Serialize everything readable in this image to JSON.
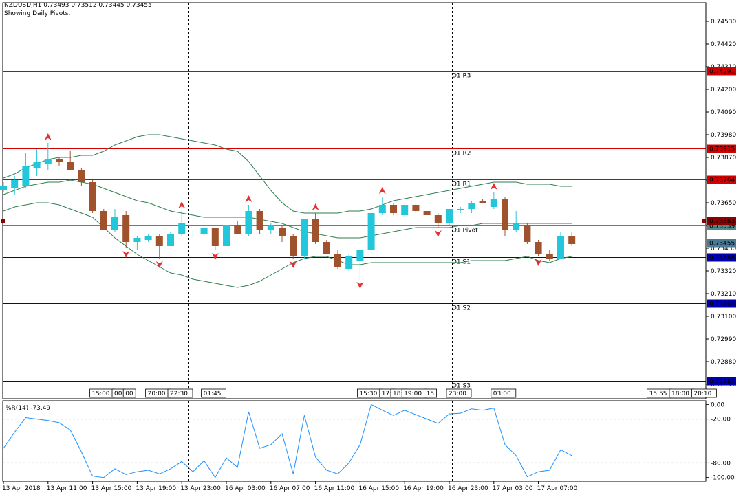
{
  "header": {
    "symbol_line": "NZDUSD,H1  0.73493 0.73512 0.73445 0.73455",
    "note": "Showing Daily Pivots."
  },
  "colors": {
    "bull": "#22C7DB",
    "bear": "#A0522D",
    "band": "#2E7D4F",
    "resistance": "#D40000",
    "support": "#0000B0",
    "pivot": "#4D8A8A",
    "price_line": "#7FA6B0",
    "wpr_line": "#1E90FF",
    "arrow": "#E53030"
  },
  "chart_data": [
    {
      "type": "candlestick",
      "title": "NZDUSD,H1",
      "ylim": [
        0.727,
        0.7462
      ],
      "y_ticks": [
        "0.74530",
        "0.74420",
        "0.74310",
        "0.74200",
        "0.74090",
        "0.73980",
        "0.73870",
        "0.73760",
        "0.73650",
        "0.73540",
        "0.73430",
        "0.73320",
        "0.73210",
        "0.73100",
        "0.72990",
        "0.72880",
        "0.72770"
      ],
      "candles": [
        {
          "o": 0.7371,
          "h": 0.7375,
          "l": 0.737,
          "c": 0.7373
        },
        {
          "o": 0.7372,
          "h": 0.7378,
          "l": 0.7369,
          "c": 0.7376
        },
        {
          "o": 0.7373,
          "h": 0.7389,
          "l": 0.7372,
          "c": 0.7383
        },
        {
          "o": 0.7382,
          "h": 0.7391,
          "l": 0.7378,
          "c": 0.7385
        },
        {
          "o": 0.7384,
          "h": 0.7394,
          "l": 0.7381,
          "c": 0.7386
        },
        {
          "o": 0.7386,
          "h": 0.7387,
          "l": 0.7383,
          "c": 0.7385
        },
        {
          "o": 0.7385,
          "h": 0.739,
          "l": 0.7381,
          "c": 0.7381
        },
        {
          "o": 0.7381,
          "h": 0.7382,
          "l": 0.7373,
          "c": 0.7375
        },
        {
          "o": 0.7375,
          "h": 0.7376,
          "l": 0.736,
          "c": 0.7361
        },
        {
          "o": 0.7361,
          "h": 0.7362,
          "l": 0.7352,
          "c": 0.7352
        },
        {
          "o": 0.7352,
          "h": 0.7362,
          "l": 0.7351,
          "c": 0.7358
        },
        {
          "o": 0.7359,
          "h": 0.7361,
          "l": 0.7343,
          "c": 0.7346
        },
        {
          "o": 0.7346,
          "h": 0.7349,
          "l": 0.7342,
          "c": 0.7348
        },
        {
          "o": 0.7347,
          "h": 0.735,
          "l": 0.7346,
          "c": 0.7349
        },
        {
          "o": 0.7349,
          "h": 0.735,
          "l": 0.7338,
          "c": 0.7344
        },
        {
          "o": 0.7344,
          "h": 0.7351,
          "l": 0.7344,
          "c": 0.735
        },
        {
          "o": 0.735,
          "h": 0.7361,
          "l": 0.7349,
          "c": 0.7355
        },
        {
          "o": 0.735,
          "h": 0.7352,
          "l": 0.7348,
          "c": 0.735
        },
        {
          "o": 0.735,
          "h": 0.7353,
          "l": 0.7349,
          "c": 0.7353
        },
        {
          "o": 0.7353,
          "h": 0.7353,
          "l": 0.7342,
          "c": 0.7344
        },
        {
          "o": 0.7344,
          "h": 0.7354,
          "l": 0.7344,
          "c": 0.7354
        },
        {
          "o": 0.7354,
          "h": 0.7356,
          "l": 0.735,
          "c": 0.735
        },
        {
          "o": 0.735,
          "h": 0.7364,
          "l": 0.7349,
          "c": 0.7361
        },
        {
          "o": 0.7361,
          "h": 0.7362,
          "l": 0.735,
          "c": 0.7352
        },
        {
          "o": 0.7352,
          "h": 0.7355,
          "l": 0.735,
          "c": 0.7354
        },
        {
          "o": 0.7353,
          "h": 0.7354,
          "l": 0.7346,
          "c": 0.7349
        },
        {
          "o": 0.7349,
          "h": 0.735,
          "l": 0.7338,
          "c": 0.7339
        },
        {
          "o": 0.7339,
          "h": 0.7357,
          "l": 0.7338,
          "c": 0.7357
        },
        {
          "o": 0.7357,
          "h": 0.736,
          "l": 0.7345,
          "c": 0.7346
        },
        {
          "o": 0.7346,
          "h": 0.7347,
          "l": 0.734,
          "c": 0.734
        },
        {
          "o": 0.734,
          "h": 0.7342,
          "l": 0.7333,
          "c": 0.7334
        },
        {
          "o": 0.7333,
          "h": 0.734,
          "l": 0.7332,
          "c": 0.7339
        },
        {
          "o": 0.7337,
          "h": 0.7342,
          "l": 0.7328,
          "c": 0.7342
        },
        {
          "o": 0.7342,
          "h": 0.7361,
          "l": 0.734,
          "c": 0.736
        },
        {
          "o": 0.736,
          "h": 0.7368,
          "l": 0.7359,
          "c": 0.7364
        },
        {
          "o": 0.7364,
          "h": 0.7365,
          "l": 0.7359,
          "c": 0.736
        },
        {
          "o": 0.7359,
          "h": 0.7364,
          "l": 0.7358,
          "c": 0.7364
        },
        {
          "o": 0.7364,
          "h": 0.7365,
          "l": 0.736,
          "c": 0.7361
        },
        {
          "o": 0.7361,
          "h": 0.7361,
          "l": 0.7359,
          "c": 0.7359
        },
        {
          "o": 0.7359,
          "h": 0.736,
          "l": 0.7353,
          "c": 0.7355
        },
        {
          "o": 0.7355,
          "h": 0.7362,
          "l": 0.7354,
          "c": 0.7362
        },
        {
          "o": 0.7362,
          "h": 0.7363,
          "l": 0.736,
          "c": 0.7362
        },
        {
          "o": 0.7362,
          "h": 0.7366,
          "l": 0.736,
          "c": 0.7365
        },
        {
          "o": 0.7366,
          "h": 0.7367,
          "l": 0.7365,
          "c": 0.7365
        },
        {
          "o": 0.7363,
          "h": 0.737,
          "l": 0.7362,
          "c": 0.7367
        },
        {
          "o": 0.7367,
          "h": 0.7368,
          "l": 0.7349,
          "c": 0.7352
        },
        {
          "o": 0.7352,
          "h": 0.7361,
          "l": 0.7351,
          "c": 0.7355
        },
        {
          "o": 0.7354,
          "h": 0.7355,
          "l": 0.7345,
          "c": 0.7346
        },
        {
          "o": 0.7346,
          "h": 0.7347,
          "l": 0.7339,
          "c": 0.734
        },
        {
          "o": 0.734,
          "h": 0.7342,
          "l": 0.7337,
          "c": 0.7338
        },
        {
          "o": 0.7338,
          "h": 0.7351,
          "l": 0.7338,
          "c": 0.7349
        },
        {
          "o": 0.7349,
          "h": 0.7351,
          "l": 0.7344,
          "c": 0.7345
        }
      ],
      "bands": {
        "upper": [
          0.7377,
          0.7379,
          0.7382,
          0.7384,
          0.7386,
          0.7387,
          0.7387,
          0.7388,
          0.7388,
          0.739,
          0.7393,
          0.7395,
          0.7397,
          0.7398,
          0.7398,
          0.7397,
          0.7396,
          0.7395,
          0.7394,
          0.7393,
          0.7391,
          0.739,
          0.7385,
          0.7378,
          0.7371,
          0.7365,
          0.7361,
          0.736,
          0.736,
          0.736,
          0.736,
          0.7361,
          0.7361,
          0.7362,
          0.7364,
          0.7366,
          0.7367,
          0.7368,
          0.7369,
          0.737,
          0.7371,
          0.7372,
          0.7373,
          0.7374,
          0.7375,
          0.7375,
          0.7375,
          0.7374,
          0.7374,
          0.7374,
          0.7373,
          0.7373
        ],
        "middle": [
          0.7369,
          0.7371,
          0.7373,
          0.7374,
          0.7375,
          0.7375,
          0.7376,
          0.7375,
          0.7374,
          0.7372,
          0.737,
          0.7368,
          0.7366,
          0.7365,
          0.7363,
          0.7361,
          0.736,
          0.7359,
          0.7358,
          0.7358,
          0.7358,
          0.7358,
          0.7358,
          0.7357,
          0.7356,
          0.7355,
          0.7353,
          0.7351,
          0.735,
          0.7349,
          0.7348,
          0.7348,
          0.7348,
          0.7349,
          0.735,
          0.7351,
          0.7352,
          0.7353,
          0.7353,
          0.7353,
          0.7353,
          0.7354,
          0.7354,
          0.7355,
          0.7355,
          0.7355,
          0.7355,
          0.7355,
          0.7355,
          0.7355,
          0.7355,
          0.7355
        ],
        "lower": [
          0.7361,
          0.7363,
          0.7364,
          0.7365,
          0.7365,
          0.7364,
          0.7362,
          0.736,
          0.7358,
          0.7353,
          0.7348,
          0.7344,
          0.734,
          0.7337,
          0.7334,
          0.7331,
          0.733,
          0.7328,
          0.7327,
          0.7326,
          0.7325,
          0.7324,
          0.7325,
          0.7327,
          0.733,
          0.7333,
          0.7336,
          0.7338,
          0.7339,
          0.7339,
          0.7337,
          0.7335,
          0.7335,
          0.7336,
          0.7336,
          0.7336,
          0.7336,
          0.7336,
          0.7336,
          0.7336,
          0.7336,
          0.7336,
          0.7337,
          0.7337,
          0.7337,
          0.7337,
          0.7338,
          0.7339,
          0.7337,
          0.7336,
          0.7338,
          0.7339
        ]
      },
      "arrows_up": [
        4,
        16,
        22,
        28,
        34,
        44
      ],
      "arrows_down": [
        11,
        14,
        19,
        26,
        32,
        39,
        48
      ],
      "pivot_levels": [
        {
          "label": "D1 R3",
          "value": 0.74291,
          "price": "0.74291",
          "kind": "resistance"
        },
        {
          "label": "D1 R2",
          "value": 0.73915,
          "price": "0.73915",
          "kind": "resistance"
        },
        {
          "label": "D1 R1",
          "value": 0.73764,
          "price": "0.73764",
          "kind": "resistance"
        },
        {
          "label": "D1 Pivot",
          "value": 0.73539,
          "price": "0.73539",
          "kind": "pivot"
        },
        {
          "label": "D1 S1",
          "value": 0.73388,
          "price": "0.73388",
          "kind": "support"
        },
        {
          "label": "D1 S2",
          "value": 0.73163,
          "price": "0.73163",
          "kind": "support"
        },
        {
          "label": "D1 S3",
          "value": 0.72787,
          "price": "0.72787",
          "kind": "support"
        }
      ],
      "prev_close": {
        "value": 0.73563,
        "price": "0.73563"
      },
      "bid": {
        "value": 0.73455,
        "price": "0.73455"
      },
      "session_tags": [
        {
          "text": "15:00",
          "c": 8
        },
        {
          "text": "00",
          "c": 10
        },
        {
          "text": "00",
          "c": 11
        },
        {
          "text": "20:00",
          "c": 13
        },
        {
          "text": "22:30",
          "c": 15
        },
        {
          "text": "01:45",
          "c": 18
        },
        {
          "text": "15:30",
          "c": 32
        },
        {
          "text": "17:",
          "c": 34
        },
        {
          "text": "18:",
          "c": 35
        },
        {
          "text": "19:00",
          "c": 36
        },
        {
          "text": "15",
          "c": 38
        },
        {
          "text": "23:00",
          "c": 40
        },
        {
          "text": "03:00",
          "c": 44
        },
        {
          "text": "15:55",
          "c": 58
        },
        {
          "text": "18:00",
          "c": 60
        },
        {
          "text": "20:10",
          "c": 62
        }
      ]
    },
    {
      "type": "line",
      "title": "%R(14) -73.49",
      "ylim": [
        -105,
        5
      ],
      "y_ticks": [
        "0.00",
        "-20.00",
        "-80.00",
        "-100.00"
      ],
      "values": [
        -60,
        -38,
        -18,
        -20,
        -22,
        -25,
        -35,
        -65,
        -98,
        -100,
        -88,
        -96,
        -92,
        -90,
        -95,
        -88,
        -78,
        -92,
        -77,
        -100,
        -73,
        -86,
        -10,
        -60,
        -55,
        -40,
        -95,
        -15,
        -72,
        -90,
        -95,
        -80,
        -55,
        0,
        -8,
        -15,
        -8,
        -14,
        -20,
        -26,
        -13,
        -12,
        -6,
        -8,
        -5,
        -55,
        -70,
        -99,
        -92,
        -90,
        -62,
        -70
      ]
    }
  ],
  "x_axis_labels": [
    {
      "text": "13 Apr 2018",
      "c": 0
    },
    {
      "text": "13 Apr 11:00",
      "c": 4
    },
    {
      "text": "13 Apr 15:00",
      "c": 8
    },
    {
      "text": "13 Apr 19:00",
      "c": 12
    },
    {
      "text": "13 Apr 23:00",
      "c": 16
    },
    {
      "text": "16 Apr 03:00",
      "c": 20
    },
    {
      "text": "16 Apr 07:00",
      "c": 24
    },
    {
      "text": "16 Apr 11:00",
      "c": 28
    },
    {
      "text": "16 Apr 15:00",
      "c": 32
    },
    {
      "text": "16 Apr 19:00",
      "c": 36
    },
    {
      "text": "16 Apr 23:00",
      "c": 40
    },
    {
      "text": "17 Apr 03:00",
      "c": 44
    },
    {
      "text": "17 Apr 07:00",
      "c": 48
    }
  ]
}
